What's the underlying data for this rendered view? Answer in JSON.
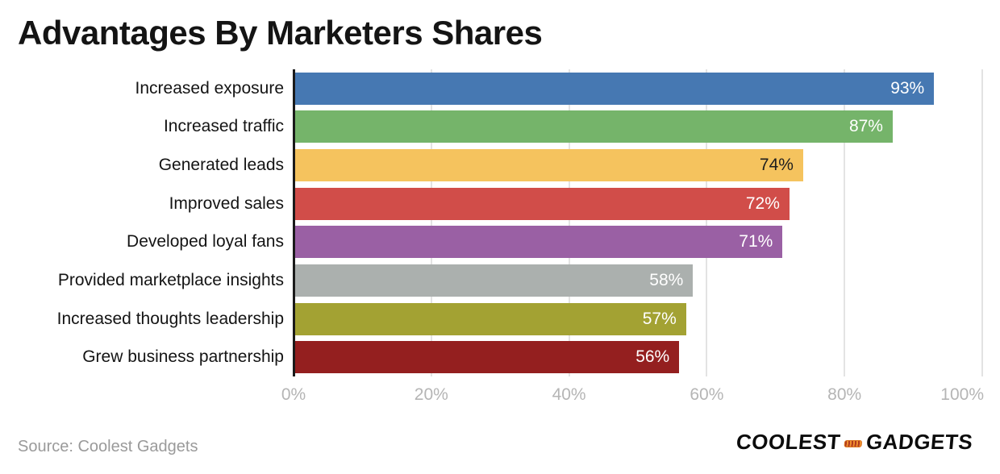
{
  "source": "Source: Coolest Gadgets",
  "logo": {
    "left": "COOLEST",
    "right": "GADGETS"
  },
  "chart_data": {
    "type": "bar",
    "orientation": "horizontal",
    "title": "Advantages By Marketers Shares",
    "categories": [
      "Increased exposure",
      "Increased traffic",
      "Generated leads",
      "Improved sales",
      "Developed loyal fans",
      "Provided marketplace insights",
      "Increased thoughts leadership",
      "Grew business partnership"
    ],
    "values": [
      93,
      87,
      74,
      72,
      71,
      58,
      57,
      56
    ],
    "value_labels": [
      "93%",
      "87%",
      "74%",
      "72%",
      "71%",
      "58%",
      "57%",
      "56%"
    ],
    "bar_colors": [
      "#4678b2",
      "#75b46a",
      "#f5c35e",
      "#d14d49",
      "#9a60a4",
      "#abb0ae",
      "#a3a233",
      "#941f1f"
    ],
    "value_label_colors": [
      "#ffffff",
      "#ffffff",
      "#1e1e1e",
      "#ffffff",
      "#ffffff",
      "#ffffff",
      "#ffffff",
      "#ffffff"
    ],
    "xlabel": "",
    "ylabel": "",
    "xlim": [
      0,
      100
    ],
    "x_ticks": [
      {
        "label": "0%",
        "value": 0
      },
      {
        "label": "20%",
        "value": 20
      },
      {
        "label": "40%",
        "value": 40
      },
      {
        "label": "60%",
        "value": 60
      },
      {
        "label": "80%",
        "value": 80
      },
      {
        "label": "100%",
        "value": 100
      }
    ],
    "grid": "vertical",
    "legend": "none",
    "colors": {
      "axis_line": "#1a1a1a",
      "gridline": "#e3e3e3",
      "tick_label": "#b5b5b5",
      "category_label": "#141414",
      "title": "#141414",
      "source_text": "#9a9a9a",
      "logo_patch": "#ef8e2e"
    }
  }
}
